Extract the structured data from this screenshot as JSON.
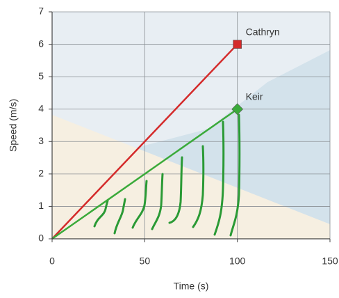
{
  "chart_data": {
    "type": "line",
    "x_label": "Time (s)",
    "y_label": "Speed (m/s)",
    "xlim": [
      0,
      150
    ],
    "xticks": [
      0,
      50,
      100,
      150
    ],
    "ylim": [
      0,
      7
    ],
    "yticks": [
      0,
      1,
      2,
      3,
      4,
      5,
      6,
      7
    ],
    "grid": true,
    "series": [
      {
        "name": "Cathryn",
        "color": "#d42a2a",
        "marker": "square",
        "x": [
          0,
          100
        ],
        "values": [
          0,
          6
        ]
      },
      {
        "name": "Keir",
        "color": "#3aaa3a",
        "marker": "diamond",
        "x": [
          0,
          100
        ],
        "values": [
          0,
          4
        ]
      }
    ]
  }
}
